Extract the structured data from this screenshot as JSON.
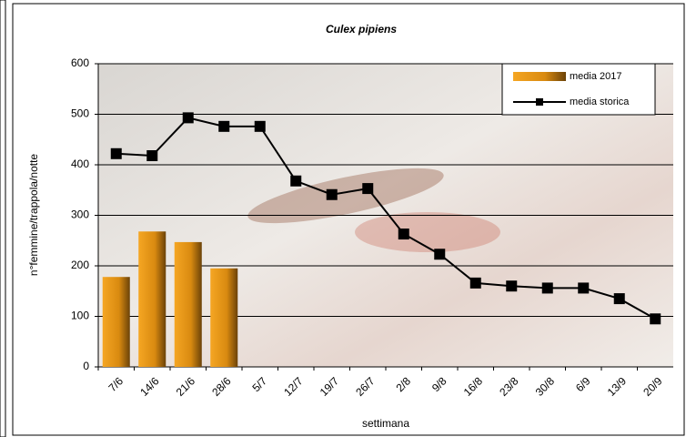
{
  "chart_data": {
    "type": "bar-line",
    "title": "Culex pipiens",
    "x_label": "settimana",
    "y_label": "n°femmine/trappola/notte",
    "categories": [
      "7/6",
      "14/6",
      "21/6",
      "28/6",
      "5/7",
      "12/7",
      "19/7",
      "26/7",
      "2/8",
      "9/8",
      "16/8",
      "23/8",
      "30/8",
      "6/9",
      "13/9",
      "20/9"
    ],
    "series": [
      {
        "name": "media 2017",
        "type": "bar",
        "color": "#e8960a",
        "values": [
          178,
          268,
          247,
          195,
          null,
          null,
          null,
          null,
          null,
          null,
          null,
          null,
          null,
          null,
          null,
          null
        ]
      },
      {
        "name": "media storica",
        "type": "line",
        "color": "#000000",
        "values": [
          422,
          418,
          493,
          476,
          476,
          368,
          341,
          353,
          263,
          223,
          166,
          160,
          156,
          156,
          135,
          95
        ]
      }
    ],
    "ylim": [
      0,
      600
    ],
    "yticks": [
      0,
      100,
      200,
      300,
      400,
      500,
      600
    ],
    "grid": true,
    "legend": "top-right"
  }
}
